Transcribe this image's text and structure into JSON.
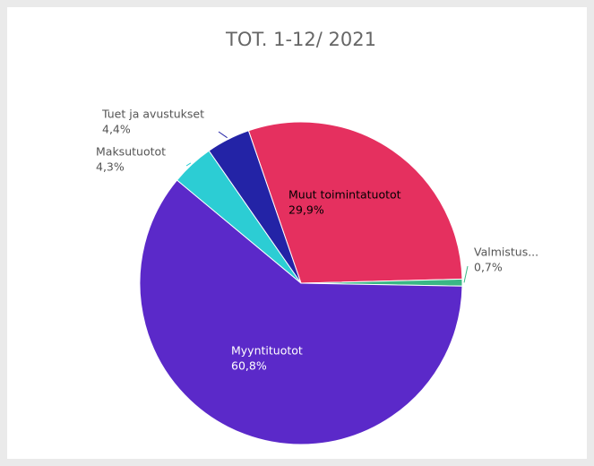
{
  "chart_data": {
    "type": "pie",
    "title": "TOT. 1-12/ 2021",
    "categories": [
      "Muut toimintatuotot",
      "Valmistus...",
      "Myyntituotot",
      "Maksutuotot",
      "Tuet ja avustukset"
    ],
    "values": [
      29.9,
      0.7,
      60.8,
      4.3,
      4.4
    ],
    "value_labels": [
      "29,9%",
      "0,7%",
      "60,8%",
      "4,3%",
      "4,4%"
    ],
    "colors": [
      "#e5305f",
      "#3ab785",
      "#5b29c9",
      "#2ccdd4",
      "#2323a6"
    ]
  }
}
